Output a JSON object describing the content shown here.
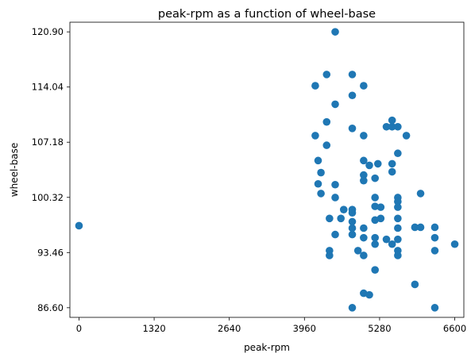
{
  "chart_data": {
    "type": "scatter",
    "title": "peak-rpm as a function of wheel-base",
    "xlabel": "peak-rpm",
    "ylabel": "wheel-base",
    "xlim": [
      -160,
      6760
    ],
    "ylim": [
      85.4,
      122.1
    ],
    "xticks": [
      0,
      1320,
      2640,
      3960,
      5280,
      6600
    ],
    "xtick_labels": [
      "0",
      "1320",
      "2640",
      "3960",
      "5280",
      "6600"
    ],
    "yticks": [
      86.6,
      93.46,
      100.32,
      107.18,
      114.04,
      120.9
    ],
    "ytick_labels": [
      "86.60",
      "93.46",
      "100.32",
      "107.18",
      "114.04",
      "120.90"
    ],
    "grid": false,
    "marker_color": "#1f77b4",
    "points": [
      [
        0,
        96.8
      ],
      [
        4150,
        114.2
      ],
      [
        4350,
        115.6
      ],
      [
        4800,
        115.6
      ],
      [
        4500,
        120.9
      ],
      [
        4800,
        113.0
      ],
      [
        5000,
        114.2
      ],
      [
        4500,
        111.9
      ],
      [
        4350,
        109.7
      ],
      [
        4800,
        108.9
      ],
      [
        4150,
        108.0
      ],
      [
        5000,
        108.0
      ],
      [
        5400,
        109.1
      ],
      [
        5500,
        109.1
      ],
      [
        5600,
        109.1
      ],
      [
        5500,
        109.9
      ],
      [
        5750,
        108.0
      ],
      [
        4350,
        106.8
      ],
      [
        4200,
        104.9
      ],
      [
        5000,
        104.9
      ],
      [
        5100,
        104.3
      ],
      [
        5250,
        104.5
      ],
      [
        5500,
        104.5
      ],
      [
        5600,
        105.8
      ],
      [
        4250,
        103.4
      ],
      [
        4200,
        102.0
      ],
      [
        4500,
        101.9
      ],
      [
        4250,
        100.8
      ],
      [
        5000,
        103.1
      ],
      [
        5200,
        102.7
      ],
      [
        5000,
        102.4
      ],
      [
        5500,
        103.5
      ],
      [
        4500,
        100.3
      ],
      [
        5200,
        100.3
      ],
      [
        5600,
        100.3
      ],
      [
        6000,
        100.8
      ],
      [
        5600,
        99.8
      ],
      [
        5200,
        99.2
      ],
      [
        5300,
        99.1
      ],
      [
        5600,
        99.1
      ],
      [
        4650,
        98.8
      ],
      [
        4800,
        98.8
      ],
      [
        4800,
        98.4
      ],
      [
        4400,
        97.7
      ],
      [
        4600,
        97.7
      ],
      [
        4800,
        97.3
      ],
      [
        4800,
        96.5
      ],
      [
        5000,
        96.5
      ],
      [
        5200,
        97.5
      ],
      [
        5300,
        97.7
      ],
      [
        5600,
        97.7
      ],
      [
        5600,
        96.5
      ],
      [
        5900,
        96.6
      ],
      [
        6000,
        96.6
      ],
      [
        6250,
        96.6
      ],
      [
        4500,
        95.7
      ],
      [
        4800,
        95.7
      ],
      [
        5000,
        95.3
      ],
      [
        5200,
        94.5
      ],
      [
        5200,
        95.3
      ],
      [
        5500,
        94.5
      ],
      [
        5400,
        95.1
      ],
      [
        5600,
        95.1
      ],
      [
        6250,
        95.3
      ],
      [
        6250,
        93.7
      ],
      [
        4400,
        93.7
      ],
      [
        4400,
        93.1
      ],
      [
        4900,
        93.7
      ],
      [
        5000,
        93.1
      ],
      [
        5600,
        93.7
      ],
      [
        5600,
        93.1
      ],
      [
        6600,
        94.5
      ],
      [
        5200,
        91.3
      ],
      [
        5000,
        88.4
      ],
      [
        5100,
        88.2
      ],
      [
        5900,
        89.5
      ],
      [
        4800,
        86.6
      ],
      [
        6250,
        86.6
      ]
    ]
  }
}
